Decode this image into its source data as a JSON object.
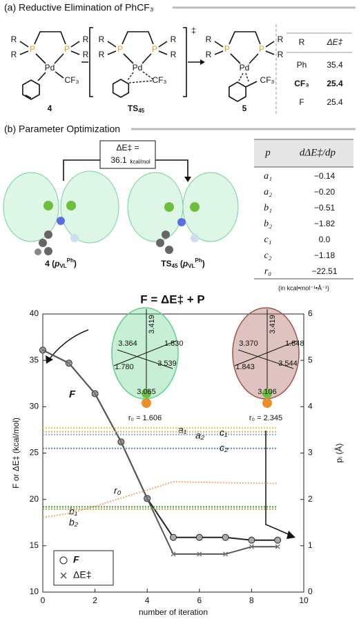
{
  "panel_a": {
    "title": "(a) Reductive Elimination of PhCF₃",
    "structures": [
      {
        "label": [
          "4"
        ],
        "atoms": [
          "R",
          "R",
          "P",
          "P",
          "R",
          "R",
          "Pd",
          "CF₃"
        ]
      },
      {
        "label": [
          "TS",
          "45"
        ],
        "atoms": [
          "R",
          "R",
          "P",
          "P",
          "R",
          "R",
          "Pd",
          "CF₃"
        ],
        "mark": "‡"
      },
      {
        "label": [
          "5"
        ],
        "atoms": [
          "R",
          "R",
          "P",
          "P",
          "R",
          "R",
          "Pd",
          "CF₃"
        ]
      }
    ],
    "table": {
      "header": [
        "R",
        "ΔE‡"
      ],
      "rows": [
        [
          "Ph",
          "35.4"
        ],
        [
          "CF₃",
          "25.4"
        ],
        [
          "F",
          "25.4"
        ]
      ]
    }
  },
  "panel_b": {
    "title": "(b) Parameter Optimization",
    "delta_box": {
      "line1": "ΔE‡ =",
      "value": "36.1",
      "unit": "kcal/mol"
    },
    "molecules": [
      {
        "label": [
          "4 (",
          "p",
          "VL",
          "Ph",
          ")"
        ]
      },
      {
        "label": [
          "TS",
          "45",
          " (",
          "p",
          "VL",
          "Ph",
          ")"
        ]
      }
    ],
    "table": {
      "header": [
        "p",
        "dΔE‡/dp"
      ],
      "rows": [
        [
          "a₁",
          "−0.14"
        ],
        [
          "a₂",
          "−0.20"
        ],
        [
          "b₁",
          "−0.51"
        ],
        [
          "b₂",
          "−1.82"
        ],
        [
          "c₁",
          "0.0"
        ],
        [
          "c₂",
          "−1.18"
        ],
        [
          "r₀",
          "−22.51"
        ]
      ],
      "note": "(in kcal•mol⁻¹•Å⁻¹)"
    }
  },
  "chart_data": {
    "type": "line",
    "title": "F = ΔE‡ + P",
    "x_label": "number of iteration",
    "y_label": "F or ΔE‡ (kcal/mol)",
    "y2_label": "pᵢ (Å)",
    "x": [
      0,
      1,
      2,
      3,
      4,
      5,
      6,
      7,
      8,
      9
    ],
    "xlim": [
      0,
      10
    ],
    "xticks": [
      0,
      2,
      4,
      6,
      8,
      10
    ],
    "ylim": [
      10,
      40
    ],
    "yticks": [
      10,
      15,
      20,
      25,
      30,
      35,
      40
    ],
    "y2lim": [
      0,
      6
    ],
    "y2ticks": [
      0,
      1,
      2,
      3,
      4,
      5,
      6
    ],
    "series": [
      {
        "name": "F",
        "color": "#222222",
        "marker": "circle",
        "values": [
          36.1,
          34.7,
          31.4,
          26.2,
          20.1,
          15.9,
          15.9,
          15.9,
          15.6,
          15.6
        ]
      },
      {
        "name": "ΔE‡",
        "color": "#555555",
        "marker": "x",
        "values": [
          36.1,
          34.7,
          31.4,
          26.2,
          20.1,
          14.1,
          14.1,
          14.1,
          14.9,
          14.9
        ]
      },
      {
        "name": "a₁",
        "color": "#f2c443",
        "axis": "y2",
        "values": [
          3.54,
          3.54,
          3.54,
          3.54,
          3.54,
          3.54,
          3.54,
          3.54,
          3.54,
          3.54
        ]
      },
      {
        "name": "a₂",
        "color": "#c9b27a",
        "axis": "y2",
        "values": [
          3.46,
          3.46,
          3.46,
          3.46,
          3.46,
          3.46,
          3.46,
          3.46,
          3.46,
          3.46
        ]
      },
      {
        "name": "c₁",
        "color": "#8fa8cc",
        "axis": "y2",
        "values": [
          3.4,
          3.4,
          3.4,
          3.4,
          3.4,
          3.4,
          3.4,
          3.4,
          3.4,
          3.4
        ]
      },
      {
        "name": "c₂",
        "color": "#5b86c4",
        "axis": "y2",
        "values": [
          3.1,
          3.1,
          3.1,
          3.1,
          3.1,
          3.1,
          3.1,
          3.1,
          3.1,
          3.1
        ]
      },
      {
        "name": "b₁",
        "color": "#4f8f2a",
        "axis": "y2",
        "values": [
          1.84,
          1.84,
          1.84,
          1.84,
          1.84,
          1.84,
          1.84,
          1.84,
          1.84,
          1.84
        ]
      },
      {
        "name": "b₂",
        "color": "#8fb04a",
        "axis": "y2",
        "values": [
          1.79,
          1.79,
          1.79,
          1.79,
          1.79,
          1.79,
          1.79,
          1.79,
          1.79,
          1.79
        ]
      },
      {
        "name": "r₀",
        "color": "#f0a878",
        "axis": "y2",
        "values": [
          1.606,
          1.7,
          1.85,
          2.03,
          2.2,
          2.38,
          2.37,
          2.36,
          2.35,
          2.345
        ]
      }
    ],
    "insets": [
      {
        "labels": [
          "3.419",
          "1.830",
          "3.364",
          "3.539",
          "1.780",
          "3.065"
        ],
        "r0": "r₀ = 1.606",
        "color": "#5fd08a"
      },
      {
        "labels": [
          "3.419",
          "1.848",
          "3.370",
          "3.544",
          "1.843",
          "3.106"
        ],
        "r0": "r₀ = 2.345",
        "color": "#a0524a"
      }
    ]
  }
}
